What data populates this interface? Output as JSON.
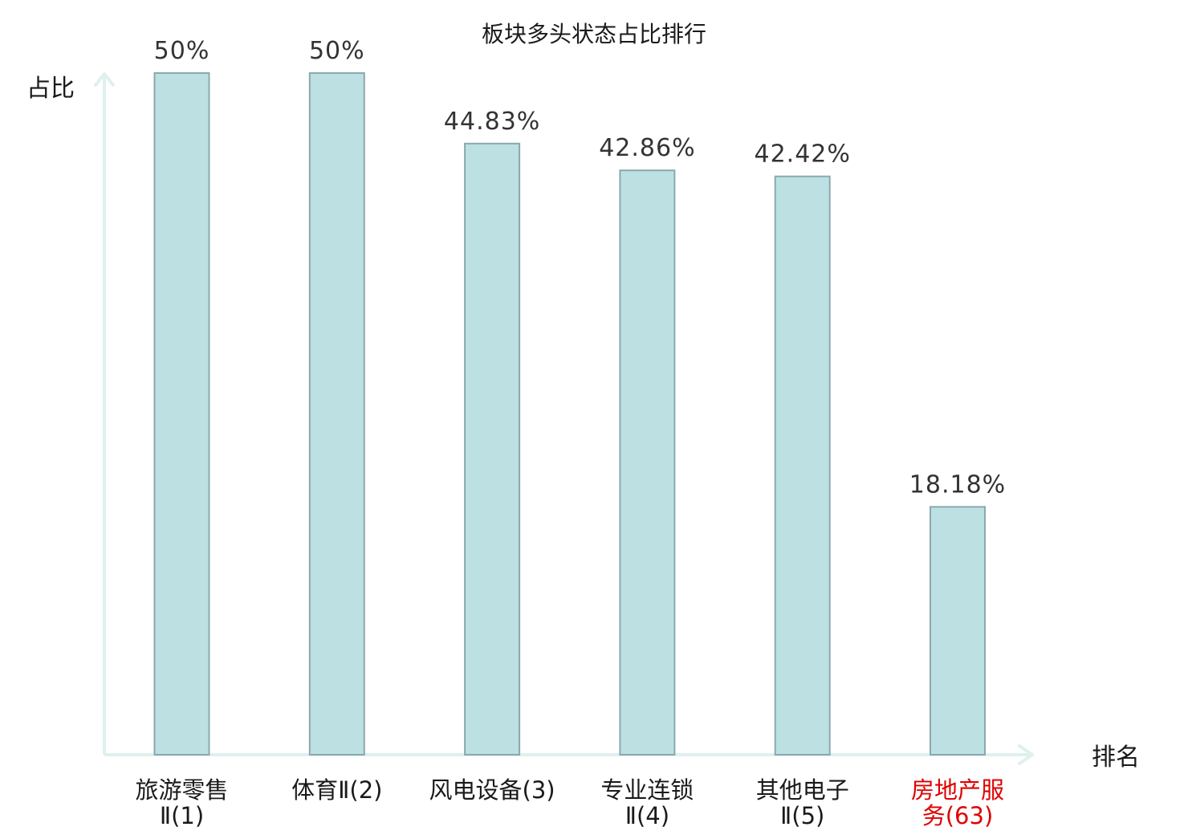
{
  "chart_data": {
    "type": "bar",
    "title": "板块多头状态占比排行",
    "ylabel": "占比",
    "xlabel": "排名",
    "ylim": [
      0,
      50
    ],
    "categories": [
      {
        "lines": [
          "旅游零售",
          "Ⅱ(1)"
        ],
        "highlight": false
      },
      {
        "lines": [
          "体育Ⅱ(2)"
        ],
        "highlight": false
      },
      {
        "lines": [
          "风电设备(3)"
        ],
        "highlight": false
      },
      {
        "lines": [
          "专业连锁",
          "Ⅱ(4)"
        ],
        "highlight": false
      },
      {
        "lines": [
          "其他电子",
          "Ⅱ(5)"
        ],
        "highlight": false
      },
      {
        "lines": [
          "房地产服",
          "务(63)"
        ],
        "highlight": true
      }
    ],
    "values": [
      50,
      50,
      44.83,
      42.86,
      42.42,
      18.18
    ],
    "value_labels": [
      "50%",
      "50%",
      "44.83%",
      "42.86%",
      "42.42%",
      "18.18%"
    ],
    "grid": false,
    "legend": "none"
  },
  "colors": {
    "bar_fill": "#bde0e3",
    "bar_stroke": "#8aa9ad",
    "axis": "#dff0ee",
    "text": "#1a1a1a",
    "value_text": "#333333",
    "highlight_text": "#e00000"
  }
}
